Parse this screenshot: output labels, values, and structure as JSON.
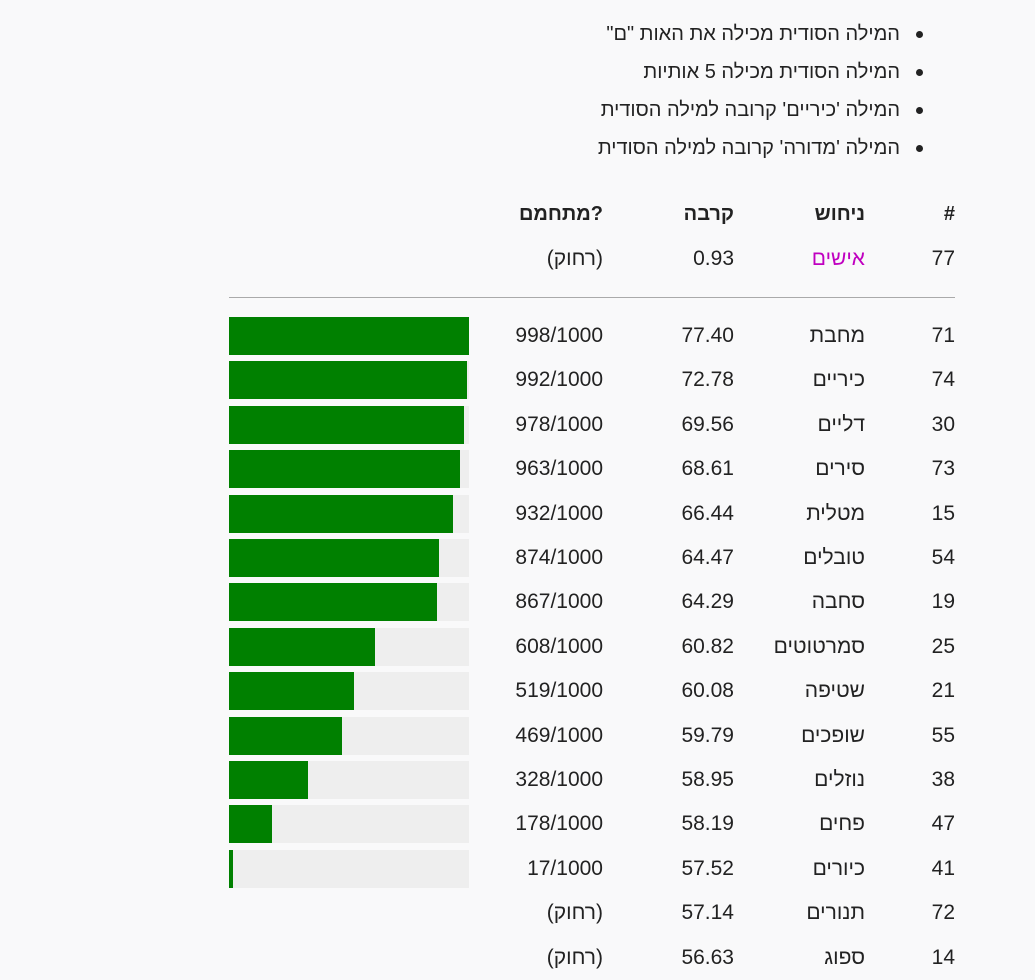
{
  "hints": [
    "המילה הסודית מכילה את האות \"ם\"",
    "המילה הסודית מכילה 5 אותיות",
    "המילה 'כיריים' קרובה למילה הסודית",
    "המילה 'מדורה' קרובה למילה הסודית"
  ],
  "table_header": {
    "num": "#",
    "guess": "ניחוש",
    "similarity": "קרבה",
    "temperature": "מתחמם?"
  },
  "latest_guess": {
    "num": "77",
    "word": "אישים",
    "similarity": "0.93",
    "status": "(רחוק)"
  },
  "guesses": [
    {
      "num": "71",
      "word": "מחבת",
      "similarity": "77.40",
      "rank": "998/1000",
      "progress": 0.998
    },
    {
      "num": "74",
      "word": "כיריים",
      "similarity": "72.78",
      "rank": "992/1000",
      "progress": 0.992
    },
    {
      "num": "30",
      "word": "דליים",
      "similarity": "69.56",
      "rank": "978/1000",
      "progress": 0.978
    },
    {
      "num": "73",
      "word": "סירים",
      "similarity": "68.61",
      "rank": "963/1000",
      "progress": 0.963
    },
    {
      "num": "15",
      "word": "מטלית",
      "similarity": "66.44",
      "rank": "932/1000",
      "progress": 0.932
    },
    {
      "num": "54",
      "word": "טובלים",
      "similarity": "64.47",
      "rank": "874/1000",
      "progress": 0.874
    },
    {
      "num": "19",
      "word": "סחבה",
      "similarity": "64.29",
      "rank": "867/1000",
      "progress": 0.867
    },
    {
      "num": "25",
      "word": "סמרטוטים",
      "similarity": "60.82",
      "rank": "608/1000",
      "progress": 0.608
    },
    {
      "num": "21",
      "word": "שטיפה",
      "similarity": "60.08",
      "rank": "519/1000",
      "progress": 0.519
    },
    {
      "num": "55",
      "word": "שופכים",
      "similarity": "59.79",
      "rank": "469/1000",
      "progress": 0.469
    },
    {
      "num": "38",
      "word": "נוזלים",
      "similarity": "58.95",
      "rank": "328/1000",
      "progress": 0.328
    },
    {
      "num": "47",
      "word": "פחים",
      "similarity": "58.19",
      "rank": "178/1000",
      "progress": 0.178
    },
    {
      "num": "41",
      "word": "כיורים",
      "similarity": "57.52",
      "rank": "17/1000",
      "progress": 0.017
    },
    {
      "num": "72",
      "word": "תנורים",
      "similarity": "57.14",
      "status": "(רחוק)"
    },
    {
      "num": "14",
      "word": "ספוג",
      "similarity": "56.63",
      "status": "(רחוק)"
    }
  ],
  "colors": {
    "bar_fill": "#008000",
    "bar_track": "#eeeeee",
    "latest_guess_word": "#c000c0"
  }
}
